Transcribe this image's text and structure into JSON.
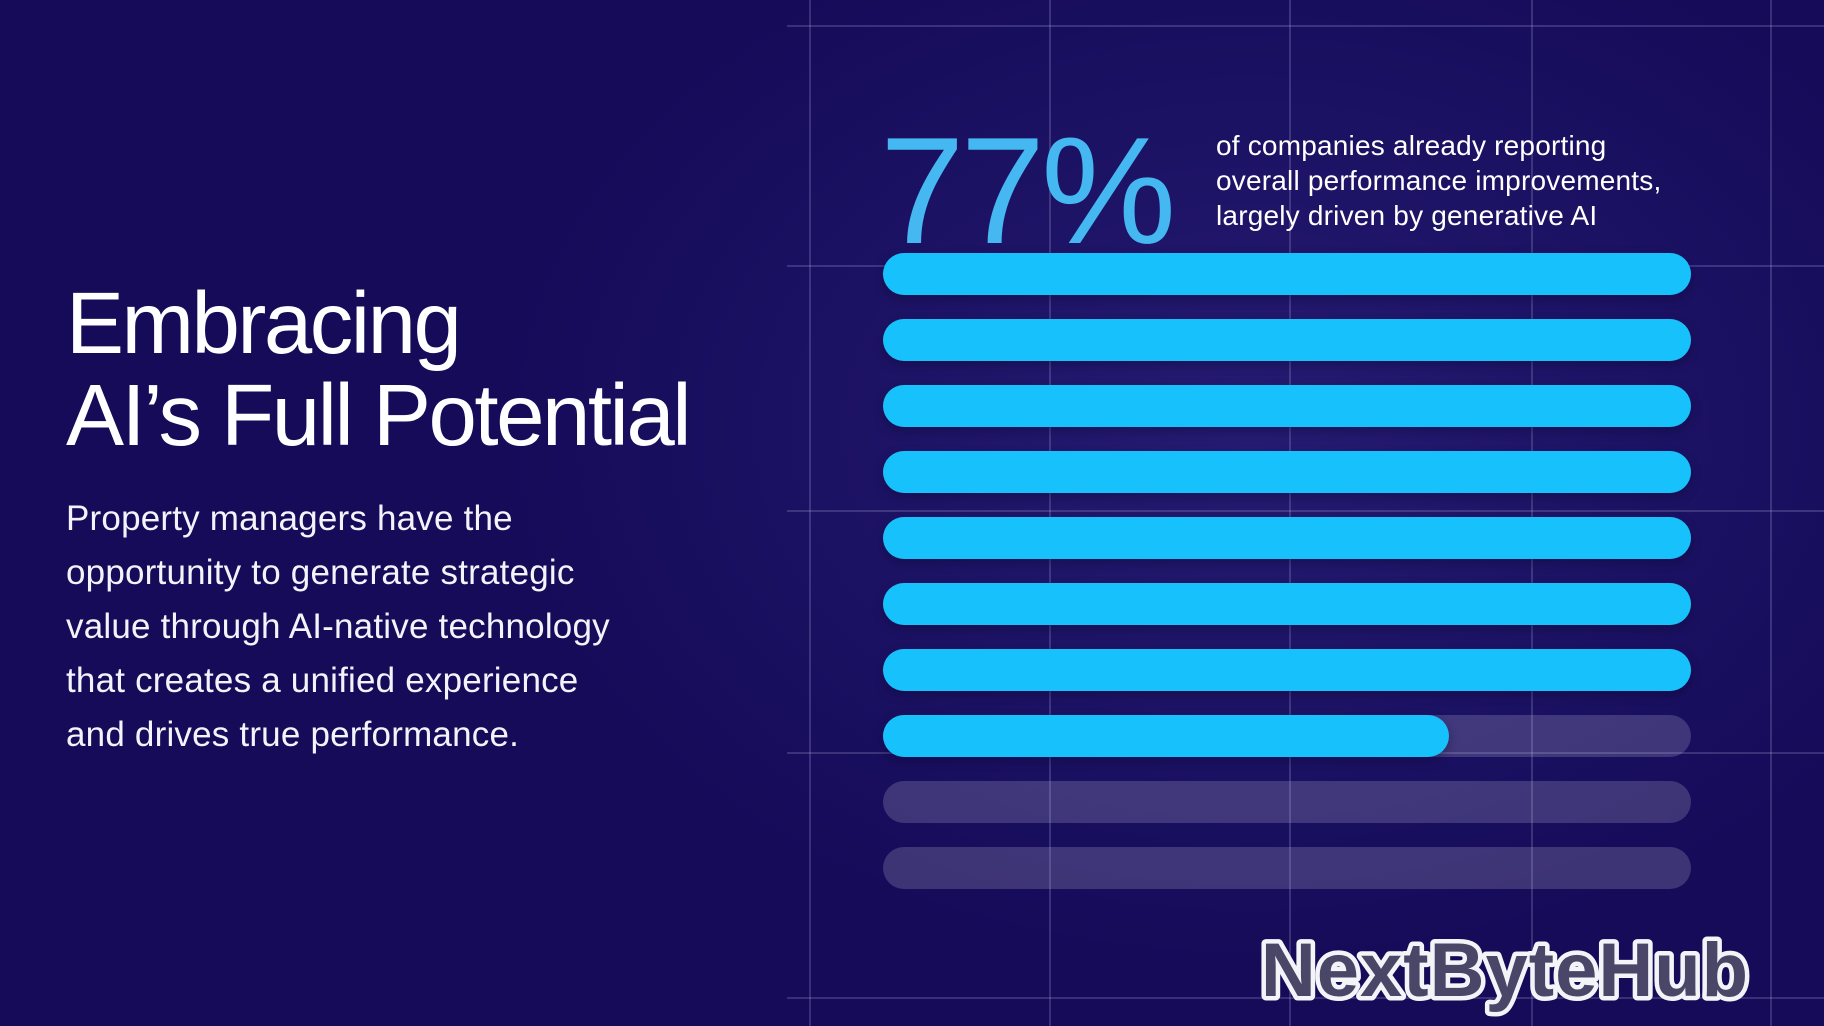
{
  "page": {
    "watermark": "NextByteHub"
  },
  "left_panel": {
    "heading_line1": "Embracing",
    "heading_line2": "AI’s Full Potential",
    "body_lines": [
      "Property managers have the",
      "opportunity to generate strategic",
      "value through AI-native technology",
      "that creates a unified experience",
      "and drives true performance."
    ]
  },
  "chart_data": {
    "type": "bar",
    "orientation": "horizontal",
    "title": "",
    "stat_value": "77%",
    "stat_description_lines": [
      "of companies already reporting",
      "overall performance improvements,",
      "largely driven by generative AI"
    ],
    "rows_fill_pct": [
      100,
      100,
      100,
      100,
      100,
      100,
      100,
      70,
      0,
      0
    ],
    "max_value": 100,
    "units": "percent",
    "legend": false,
    "grid": true,
    "bar_color": "#17c1fb",
    "track_color": "rgba(255,255,255,0.17)",
    "stat_color": "#45b7f1",
    "background_color": "#150b59",
    "grid_color": "rgba(198,198,240,0.20)"
  }
}
